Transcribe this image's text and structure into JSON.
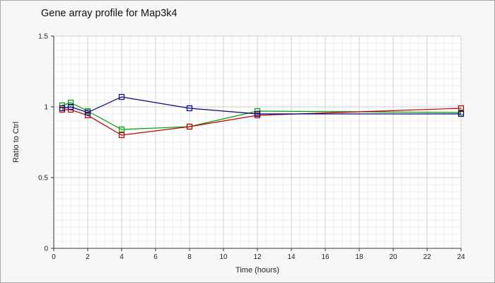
{
  "chart_data": {
    "type": "line",
    "title": "Gene array profile for Map3k4",
    "xlabel": "Time (hours)",
    "ylabel": "Ratio to Ctrl",
    "xlim": [
      0,
      24
    ],
    "ylim": [
      0,
      1.5
    ],
    "x_ticks": [
      "0",
      "2",
      "4",
      "6",
      "8",
      "10",
      "12",
      "14",
      "16",
      "18",
      "20",
      "22",
      "24"
    ],
    "y_ticks": [
      "0",
      "0.5",
      "1",
      "1.5"
    ],
    "grid": true,
    "legend": "none",
    "series": [
      {
        "color": "#00a000",
        "marker": "square",
        "x": [
          0.5,
          1,
          2,
          4,
          8,
          12,
          24
        ],
        "y": [
          1.01,
          1.03,
          0.97,
          0.84,
          0.86,
          0.97,
          0.96
        ]
      },
      {
        "color": "#c00000",
        "marker": "square",
        "x": [
          0.5,
          1,
          2,
          4,
          8,
          12,
          24
        ],
        "y": [
          0.98,
          0.98,
          0.94,
          0.8,
          0.86,
          0.94,
          0.99
        ]
      },
      {
        "color": "#00008b",
        "marker": "square",
        "x": [
          0.5,
          1,
          2,
          4,
          8,
          12,
          24
        ],
        "y": [
          0.99,
          1.0,
          0.96,
          1.07,
          0.99,
          0.95,
          0.95
        ]
      }
    ]
  }
}
